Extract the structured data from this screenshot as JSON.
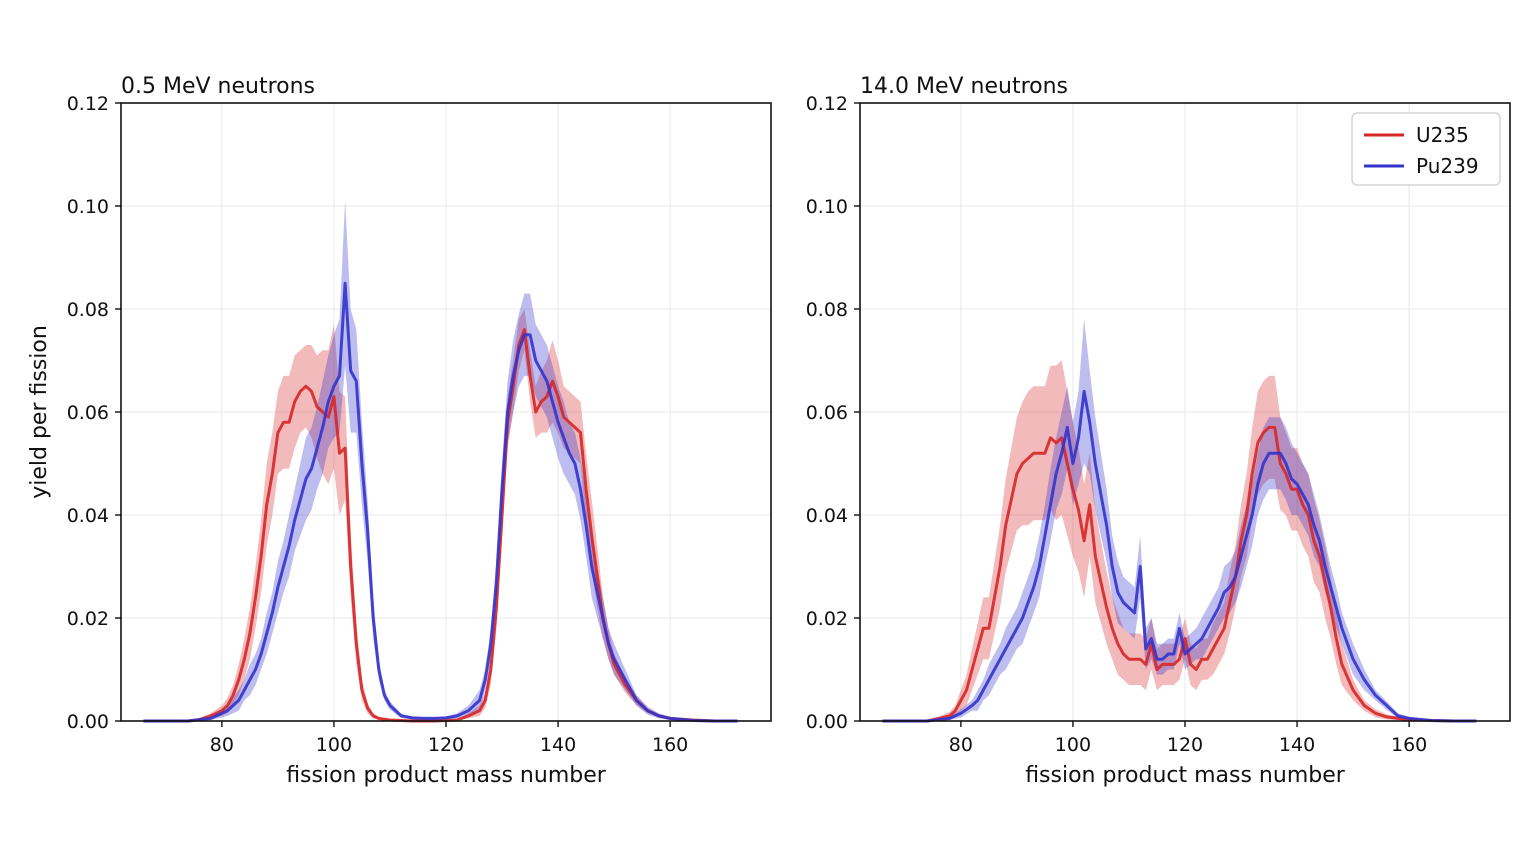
{
  "chart_data": [
    {
      "type": "line",
      "title": "0.5 MeV neutrons",
      "xlabel": "fission product mass number",
      "ylabel": "yield per fission",
      "xlim": [
        62,
        178
      ],
      "ylim": [
        0,
        0.12
      ],
      "xticks": [
        80,
        100,
        120,
        140,
        160
      ],
      "yticks": [
        0.0,
        0.02,
        0.04,
        0.06,
        0.08,
        0.1,
        0.12
      ],
      "grid": true,
      "legend": null,
      "series": [
        {
          "name": "U235",
          "color": "#d62728",
          "x": [
            66,
            70,
            74,
            76,
            78,
            79,
            80,
            81,
            82,
            83,
            84,
            85,
            86,
            87,
            88,
            89,
            90,
            91,
            92,
            93,
            94,
            95,
            96,
            97,
            98,
            99,
            100,
            101,
            102,
            103,
            104,
            105,
            106,
            107,
            108,
            110,
            114,
            118,
            122,
            124,
            126,
            127,
            128,
            129,
            130,
            131,
            132,
            133,
            134,
            135,
            136,
            137,
            138,
            139,
            140,
            141,
            142,
            143,
            144,
            145,
            146,
            147,
            148,
            149,
            150,
            152,
            154,
            156,
            158,
            160,
            164,
            168,
            172
          ],
          "y": [
            0.0,
            0.0,
            0.0,
            0.0003,
            0.001,
            0.0015,
            0.002,
            0.003,
            0.005,
            0.008,
            0.012,
            0.017,
            0.024,
            0.032,
            0.042,
            0.048,
            0.056,
            0.058,
            0.058,
            0.062,
            0.064,
            0.065,
            0.064,
            0.061,
            0.06,
            0.059,
            0.063,
            0.052,
            0.053,
            0.03,
            0.015,
            0.006,
            0.0025,
            0.001,
            0.0005,
            0.0002,
            0.0,
            0.0,
            0.0002,
            0.001,
            0.002,
            0.004,
            0.01,
            0.022,
            0.04,
            0.058,
            0.065,
            0.073,
            0.076,
            0.067,
            0.06,
            0.062,
            0.063,
            0.066,
            0.063,
            0.059,
            0.058,
            0.057,
            0.056,
            0.045,
            0.036,
            0.028,
            0.02,
            0.015,
            0.011,
            0.007,
            0.004,
            0.002,
            0.001,
            0.0005,
            0.0002,
            0.0,
            0.0
          ],
          "band": [
            0.0,
            0.0,
            0.0,
            0.0002,
            0.0005,
            0.0008,
            0.001,
            0.0015,
            0.002,
            0.003,
            0.004,
            0.005,
            0.006,
            0.007,
            0.008,
            0.008,
            0.008,
            0.009,
            0.009,
            0.009,
            0.008,
            0.008,
            0.009,
            0.01,
            0.012,
            0.013,
            0.014,
            0.012,
            0.01,
            0.006,
            0.004,
            0.002,
            0.001,
            0.0005,
            0.0003,
            0.0001,
            0.0,
            0.0,
            0.0001,
            0.0005,
            0.001,
            0.0015,
            0.003,
            0.004,
            0.005,
            0.005,
            0.005,
            0.005,
            0.004,
            0.005,
            0.005,
            0.006,
            0.007,
            0.008,
            0.007,
            0.006,
            0.006,
            0.006,
            0.006,
            0.007,
            0.007,
            0.006,
            0.004,
            0.003,
            0.002,
            0.0015,
            0.001,
            0.0005,
            0.0003,
            0.0002,
            0.0001,
            0.0,
            0.0
          ]
        },
        {
          "name": "Pu239",
          "color": "#3333cc",
          "x": [
            66,
            70,
            74,
            78,
            80,
            81,
            82,
            83,
            84,
            85,
            86,
            87,
            88,
            89,
            90,
            91,
            92,
            93,
            94,
            95,
            96,
            97,
            98,
            99,
            100,
            101,
            102,
            103,
            104,
            105,
            106,
            107,
            108,
            109,
            110,
            112,
            114,
            116,
            118,
            120,
            122,
            124,
            126,
            127,
            128,
            129,
            130,
            131,
            132,
            133,
            134,
            135,
            136,
            137,
            138,
            139,
            140,
            141,
            142,
            143,
            144,
            145,
            146,
            147,
            148,
            149,
            150,
            152,
            154,
            156,
            158,
            160,
            164,
            168,
            172
          ],
          "y": [
            0.0,
            0.0,
            0.0,
            0.0005,
            0.0015,
            0.002,
            0.003,
            0.004,
            0.006,
            0.008,
            0.01,
            0.013,
            0.017,
            0.021,
            0.026,
            0.03,
            0.034,
            0.039,
            0.043,
            0.047,
            0.049,
            0.053,
            0.057,
            0.062,
            0.065,
            0.067,
            0.085,
            0.068,
            0.066,
            0.05,
            0.037,
            0.02,
            0.01,
            0.005,
            0.003,
            0.001,
            0.0006,
            0.0005,
            0.0005,
            0.0006,
            0.001,
            0.002,
            0.004,
            0.008,
            0.015,
            0.027,
            0.045,
            0.06,
            0.067,
            0.072,
            0.075,
            0.075,
            0.07,
            0.068,
            0.066,
            0.062,
            0.058,
            0.055,
            0.052,
            0.05,
            0.045,
            0.038,
            0.03,
            0.025,
            0.02,
            0.015,
            0.012,
            0.008,
            0.004,
            0.002,
            0.001,
            0.0005,
            0.0001,
            0.0,
            0.0
          ],
          "band": [
            0.0,
            0.0,
            0.0,
            0.0003,
            0.0008,
            0.001,
            0.0015,
            0.002,
            0.002,
            0.003,
            0.003,
            0.003,
            0.004,
            0.004,
            0.005,
            0.005,
            0.006,
            0.006,
            0.007,
            0.008,
            0.008,
            0.008,
            0.009,
            0.009,
            0.01,
            0.011,
            0.016,
            0.012,
            0.01,
            0.008,
            0.006,
            0.004,
            0.002,
            0.001,
            0.0008,
            0.0004,
            0.0003,
            0.0003,
            0.0003,
            0.0003,
            0.0005,
            0.001,
            0.002,
            0.002,
            0.003,
            0.004,
            0.005,
            0.006,
            0.007,
            0.007,
            0.008,
            0.008,
            0.007,
            0.007,
            0.007,
            0.007,
            0.007,
            0.007,
            0.006,
            0.006,
            0.006,
            0.006,
            0.006,
            0.005,
            0.004,
            0.003,
            0.003,
            0.002,
            0.001,
            0.0008,
            0.0005,
            0.0003,
            0.0001,
            0.0,
            0.0
          ]
        }
      ]
    },
    {
      "type": "line",
      "title": "14.0 MeV neutrons",
      "xlabel": "fission product mass number",
      "ylabel": "",
      "xlim": [
        62,
        178
      ],
      "ylim": [
        0,
        0.12
      ],
      "xticks": [
        80,
        100,
        120,
        140,
        160
      ],
      "yticks": [
        0.0,
        0.02,
        0.04,
        0.06,
        0.08,
        0.1,
        0.12
      ],
      "grid": true,
      "legend": "top-right",
      "series": [
        {
          "name": "U235",
          "color": "#d62728",
          "x": [
            66,
            70,
            74,
            76,
            78,
            79,
            80,
            81,
            82,
            83,
            84,
            85,
            86,
            87,
            88,
            89,
            90,
            91,
            92,
            93,
            94,
            95,
            96,
            97,
            98,
            99,
            100,
            101,
            102,
            103,
            104,
            105,
            106,
            107,
            108,
            109,
            110,
            111,
            112,
            113,
            114,
            115,
            116,
            117,
            118,
            119,
            120,
            121,
            122,
            123,
            124,
            125,
            126,
            127,
            128,
            129,
            130,
            131,
            132,
            133,
            134,
            135,
            136,
            137,
            138,
            139,
            140,
            141,
            142,
            143,
            144,
            145,
            146,
            147,
            148,
            150,
            152,
            154,
            156,
            158,
            160,
            164,
            168,
            172
          ],
          "y": [
            0.0,
            0.0,
            0.0,
            0.0005,
            0.001,
            0.002,
            0.004,
            0.006,
            0.01,
            0.014,
            0.018,
            0.018,
            0.024,
            0.03,
            0.038,
            0.043,
            0.048,
            0.05,
            0.051,
            0.052,
            0.052,
            0.052,
            0.055,
            0.054,
            0.055,
            0.05,
            0.045,
            0.041,
            0.035,
            0.042,
            0.032,
            0.027,
            0.022,
            0.018,
            0.015,
            0.013,
            0.012,
            0.012,
            0.012,
            0.011,
            0.015,
            0.01,
            0.011,
            0.011,
            0.011,
            0.012,
            0.016,
            0.011,
            0.01,
            0.012,
            0.012,
            0.014,
            0.016,
            0.018,
            0.023,
            0.028,
            0.035,
            0.04,
            0.048,
            0.054,
            0.056,
            0.057,
            0.057,
            0.05,
            0.048,
            0.045,
            0.045,
            0.042,
            0.04,
            0.035,
            0.032,
            0.027,
            0.022,
            0.016,
            0.011,
            0.006,
            0.003,
            0.0015,
            0.0008,
            0.0005,
            0.0003,
            0.0001,
            0.0,
            0.0
          ],
          "band": [
            0.0,
            0.0,
            0.0,
            0.0003,
            0.0008,
            0.001,
            0.002,
            0.003,
            0.004,
            0.005,
            0.006,
            0.006,
            0.007,
            0.008,
            0.009,
            0.01,
            0.011,
            0.012,
            0.013,
            0.013,
            0.013,
            0.013,
            0.014,
            0.015,
            0.015,
            0.014,
            0.013,
            0.012,
            0.011,
            0.01,
            0.009,
            0.008,
            0.007,
            0.006,
            0.006,
            0.005,
            0.005,
            0.005,
            0.005,
            0.005,
            0.005,
            0.004,
            0.004,
            0.004,
            0.004,
            0.004,
            0.004,
            0.004,
            0.004,
            0.004,
            0.004,
            0.005,
            0.005,
            0.005,
            0.006,
            0.006,
            0.007,
            0.008,
            0.009,
            0.01,
            0.01,
            0.01,
            0.01,
            0.009,
            0.008,
            0.008,
            0.008,
            0.008,
            0.008,
            0.008,
            0.007,
            0.007,
            0.006,
            0.005,
            0.004,
            0.002,
            0.001,
            0.0008,
            0.0005,
            0.0003,
            0.0002,
            0.0001,
            0.0,
            0.0
          ]
        },
        {
          "name": "Pu239",
          "color": "#3333cc",
          "x": [
            66,
            70,
            74,
            78,
            80,
            82,
            83,
            84,
            85,
            86,
            87,
            88,
            89,
            90,
            91,
            92,
            93,
            94,
            95,
            96,
            97,
            98,
            99,
            100,
            101,
            102,
            103,
            104,
            105,
            106,
            107,
            108,
            109,
            110,
            111,
            112,
            113,
            114,
            115,
            116,
            117,
            118,
            119,
            120,
            121,
            122,
            123,
            124,
            125,
            126,
            127,
            128,
            129,
            130,
            131,
            132,
            133,
            134,
            135,
            136,
            137,
            138,
            139,
            140,
            141,
            142,
            143,
            144,
            145,
            146,
            147,
            148,
            150,
            152,
            154,
            156,
            158,
            160,
            164,
            168,
            172
          ],
          "y": [
            0.0,
            0.0,
            0.0,
            0.0005,
            0.0015,
            0.003,
            0.004,
            0.006,
            0.008,
            0.01,
            0.012,
            0.014,
            0.016,
            0.018,
            0.02,
            0.023,
            0.026,
            0.03,
            0.036,
            0.042,
            0.048,
            0.052,
            0.057,
            0.05,
            0.055,
            0.064,
            0.058,
            0.05,
            0.044,
            0.038,
            0.03,
            0.025,
            0.023,
            0.022,
            0.021,
            0.03,
            0.014,
            0.016,
            0.012,
            0.012,
            0.013,
            0.013,
            0.018,
            0.013,
            0.014,
            0.015,
            0.016,
            0.018,
            0.02,
            0.022,
            0.025,
            0.026,
            0.028,
            0.032,
            0.036,
            0.04,
            0.046,
            0.05,
            0.052,
            0.052,
            0.052,
            0.05,
            0.047,
            0.046,
            0.044,
            0.042,
            0.038,
            0.035,
            0.03,
            0.026,
            0.022,
            0.018,
            0.012,
            0.008,
            0.005,
            0.003,
            0.001,
            0.0005,
            0.0001,
            0.0,
            0.0
          ],
          "band": [
            0.0,
            0.0,
            0.0,
            0.0003,
            0.0008,
            0.001,
            0.002,
            0.002,
            0.003,
            0.003,
            0.003,
            0.004,
            0.004,
            0.004,
            0.005,
            0.005,
            0.005,
            0.006,
            0.006,
            0.007,
            0.007,
            0.008,
            0.008,
            0.008,
            0.009,
            0.014,
            0.01,
            0.009,
            0.008,
            0.007,
            0.006,
            0.006,
            0.005,
            0.005,
            0.005,
            0.006,
            0.004,
            0.004,
            0.003,
            0.003,
            0.003,
            0.003,
            0.003,
            0.003,
            0.003,
            0.003,
            0.004,
            0.004,
            0.004,
            0.004,
            0.005,
            0.005,
            0.005,
            0.006,
            0.006,
            0.006,
            0.006,
            0.007,
            0.007,
            0.007,
            0.007,
            0.007,
            0.007,
            0.006,
            0.006,
            0.006,
            0.006,
            0.005,
            0.005,
            0.004,
            0.004,
            0.003,
            0.003,
            0.002,
            0.001,
            0.0008,
            0.0005,
            0.0003,
            0.0001,
            0.0,
            0.0
          ]
        }
      ]
    }
  ]
}
